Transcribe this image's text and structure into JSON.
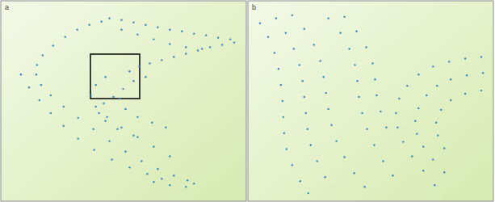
{
  "chart_data": [
    {
      "type": "scatter",
      "title": "a",
      "color": "#3a86bf",
      "marker": "circle",
      "tick_labels": false,
      "xlim": [
        0,
        305
      ],
      "ylim": [
        0,
        250
      ],
      "x": [
        135,
        150,
        165,
        180,
        195,
        210,
        225,
        240,
        255,
        270,
        285,
        290,
        275,
        260,
        245,
        230,
        215,
        200,
        185,
        172,
        160,
        150,
        170,
        190,
        210,
        230,
        250,
        125,
        110,
        95,
        80,
        65,
        52,
        45,
        44,
        50,
        62,
        78,
        96,
        115,
        135,
        155,
        175,
        195,
        215,
        232,
        240,
        230,
        210,
        190,
        130,
        118,
        112,
        118,
        132,
        150,
        170,
        190,
        210,
        25,
        35,
        48,
        62,
        78,
        96,
        116,
        138,
        160,
        182,
        200,
        180,
        165,
        152,
        148,
        155,
        170,
        188,
        205,
        140,
        128,
        122,
        130,
        145,
        165
      ],
      "values": [
        228,
        226,
        223,
        220,
        217,
        214,
        212,
        209,
        207,
        204,
        202,
        198,
        195,
        192,
        188,
        184,
        180,
        176,
        172,
        168,
        162,
        214,
        208,
        202,
        196,
        192,
        190,
        224,
        220,
        214,
        205,
        194,
        182,
        170,
        158,
        145,
        132,
        118,
        104,
        90,
        75,
        62,
        50,
        40,
        32,
        26,
        22,
        18,
        20,
        24,
        155,
        145,
        132,
        118,
        105,
        92,
        80,
        68,
        56,
        158,
        142,
        126,
        110,
        94,
        78,
        64,
        52,
        42,
        34,
        28,
        155,
        150,
        140,
        128,
        115,
        105,
        98,
        92,
        130,
        122,
        110,
        100,
        90,
        82
      ]
    },
    {
      "type": "scatter",
      "title": "b",
      "color": "#3a86bf",
      "marker": "circle",
      "tick_labels": false,
      "xlim": [
        0,
        305
      ],
      "ylim": [
        0,
        250
      ],
      "x": [
        15,
        25,
        33,
        38,
        41,
        43,
        44,
        45,
        48,
        55,
        65,
        75,
        35,
        47,
        57,
        64,
        68,
        70,
        72,
        74,
        78,
        86,
        96,
        55,
        70,
        82,
        90,
        94,
        97,
        100,
        104,
        110,
        120,
        132,
        145,
        100,
        115,
        126,
        133,
        136,
        138,
        142,
        148,
        157,
        168,
        180,
        120,
        135,
        147,
        155,
        158,
        160,
        165,
        172,
        290,
        270,
        250,
        230,
        212,
        198,
        188,
        184,
        186,
        193,
        204,
        218,
        232,
        292,
        272,
        252,
        235,
        222,
        212,
        208,
        210,
        218,
        230,
        244,
        290,
        270,
        252,
        240,
        234,
        236,
        244
      ],
      "values": [
        222,
        205,
        185,
        165,
        145,
        125,
        105,
        85,
        65,
        45,
        25,
        10,
        228,
        210,
        190,
        170,
        150,
        130,
        110,
        90,
        70,
        50,
        30,
        232,
        215,
        195,
        175,
        155,
        135,
        115,
        95,
        75,
        55,
        35,
        18,
        228,
        210,
        190,
        170,
        150,
        130,
        110,
        90,
        70,
        50,
        32,
        230,
        212,
        192,
        172,
        152,
        132,
        112,
        92,
        180,
        178,
        174,
        168,
        158,
        144,
        128,
        110,
        92,
        74,
        56,
        38,
        20,
        160,
        157,
        152,
        144,
        132,
        116,
        100,
        84,
        68,
        52,
        36,
        138,
        134,
        126,
        114,
        98,
        82,
        66
      ]
    }
  ]
}
